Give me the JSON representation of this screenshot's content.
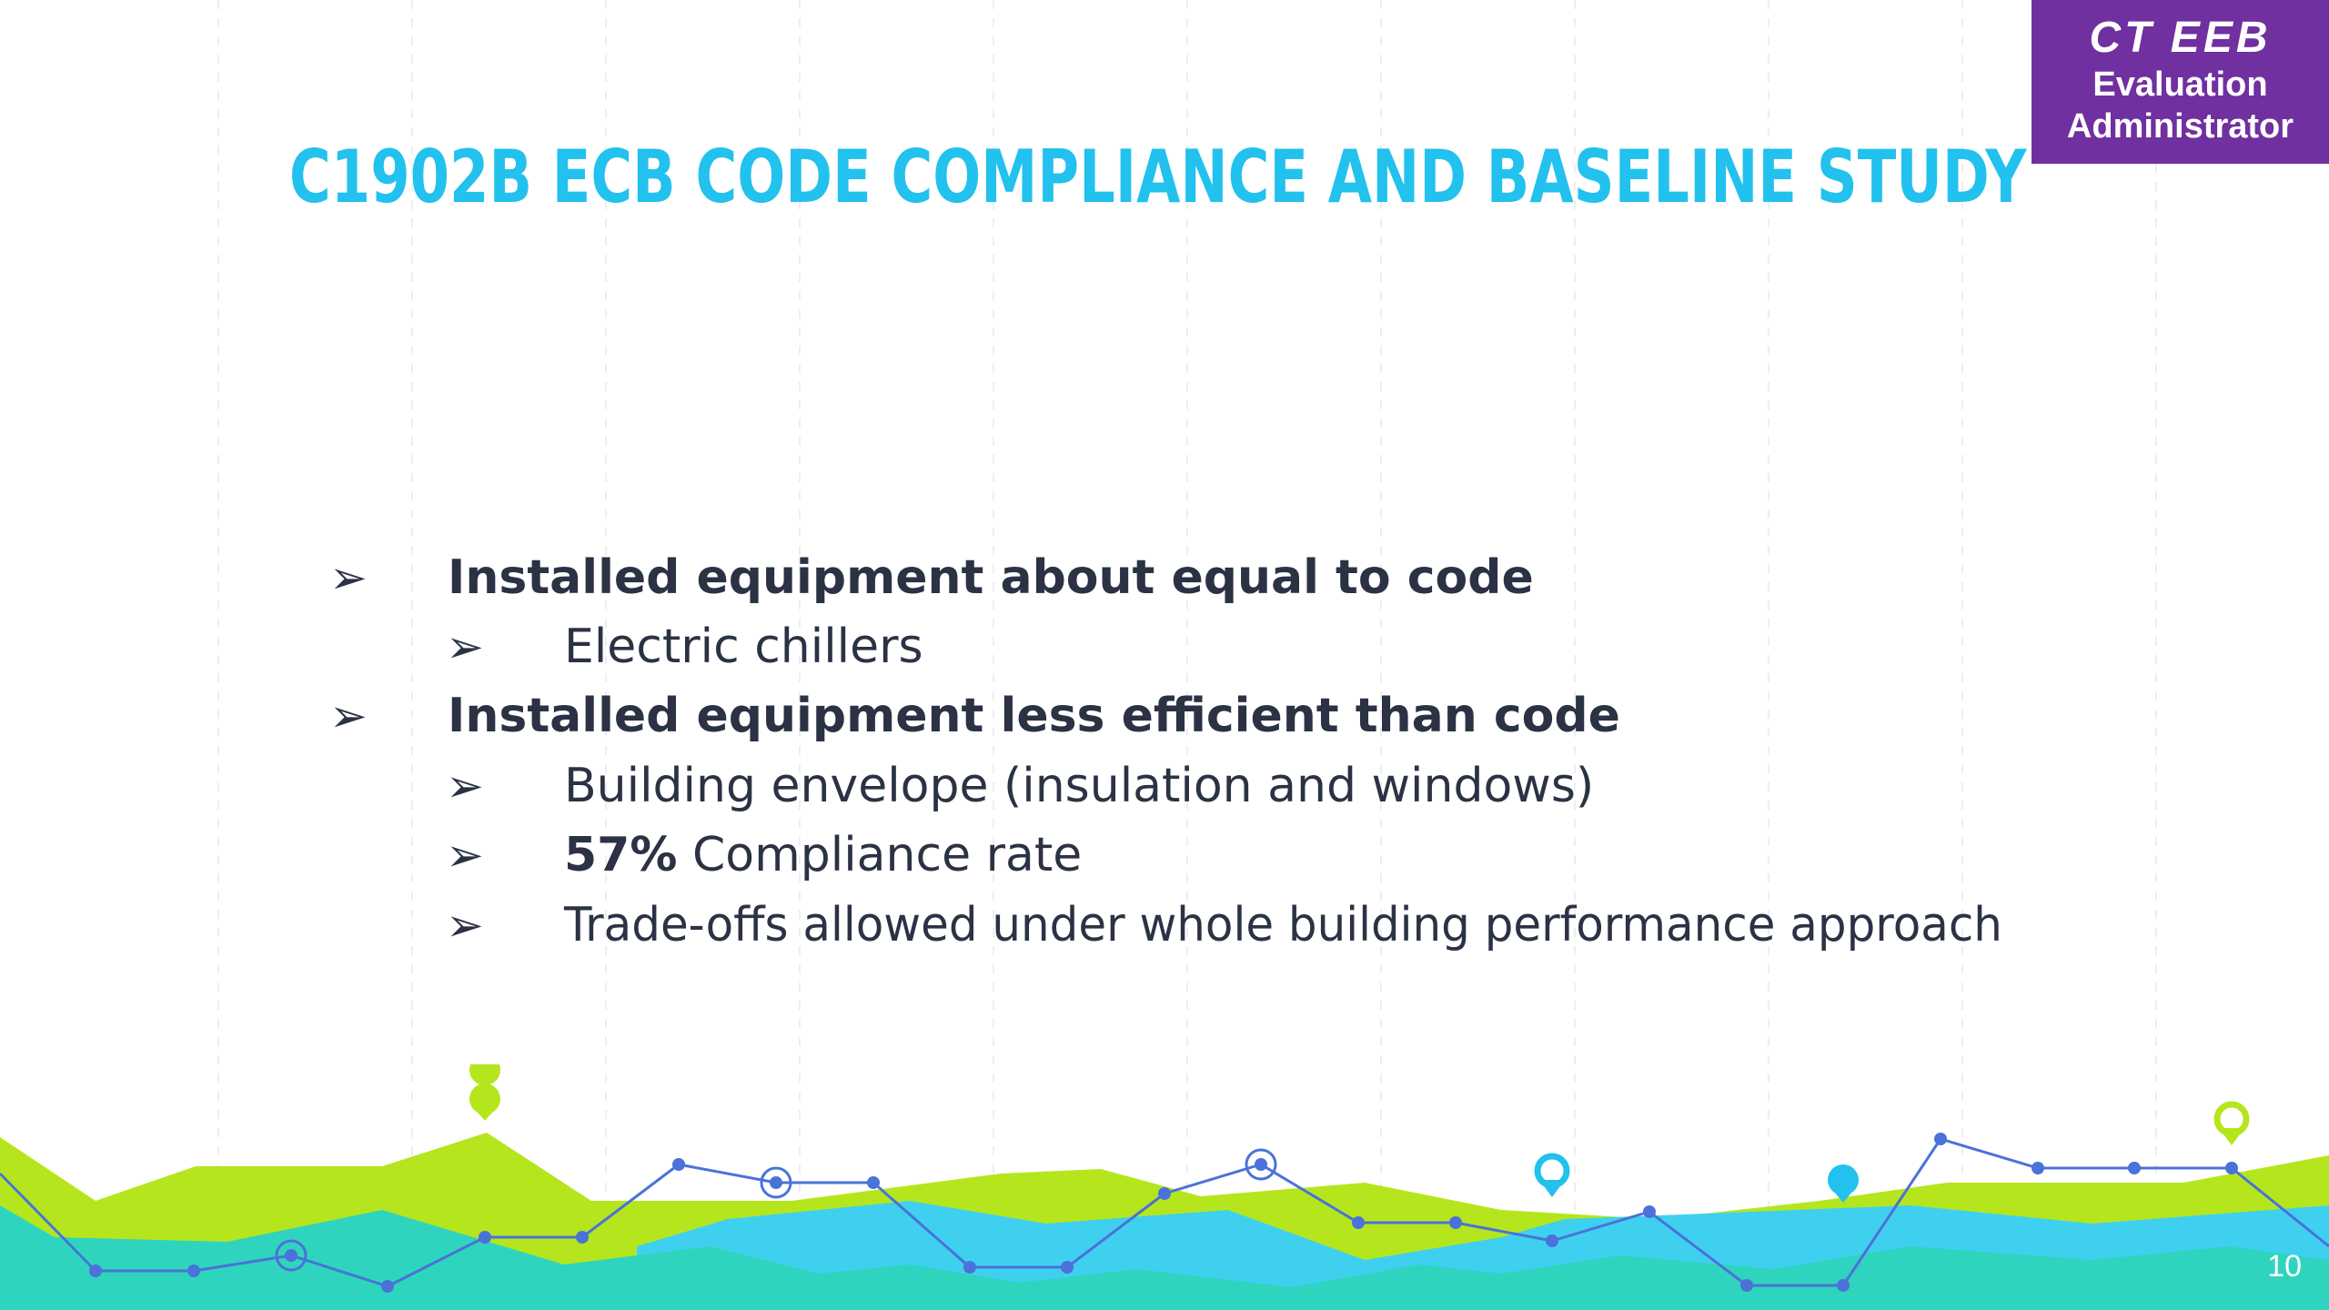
{
  "badge": {
    "org": "CT EEB",
    "line1": "Evaluation",
    "line2": "Administrator",
    "color": "#7030a0"
  },
  "slide": {
    "title": "C1902B ECB CODE COMPLIANCE AND BASELINE STUDY",
    "title_color": "#22c1ee",
    "page_number": "10"
  },
  "bullet_icon": "arrowhead-bullet-icon",
  "bullets": [
    {
      "level": 1,
      "text": "Installed equipment about equal to code"
    },
    {
      "level": 2,
      "text": "Electric chillers"
    },
    {
      "level": 1,
      "text": "Installed equipment less efficient than code"
    },
    {
      "level": 2,
      "text": "Building envelope (insulation and windows)"
    },
    {
      "level": 2,
      "strong": "57%",
      "text": " Compliance rate"
    },
    {
      "level": 2,
      "text": "Trade-offs allowed under whole building performance approach"
    }
  ],
  "decor": {
    "lime": "#b5e61d",
    "teal": "#2fd4be",
    "sky": "#3fd0f0",
    "line": "#4a72d8",
    "pin_icons": [
      "map-pin-icon",
      "map-pin-outline-icon"
    ]
  }
}
